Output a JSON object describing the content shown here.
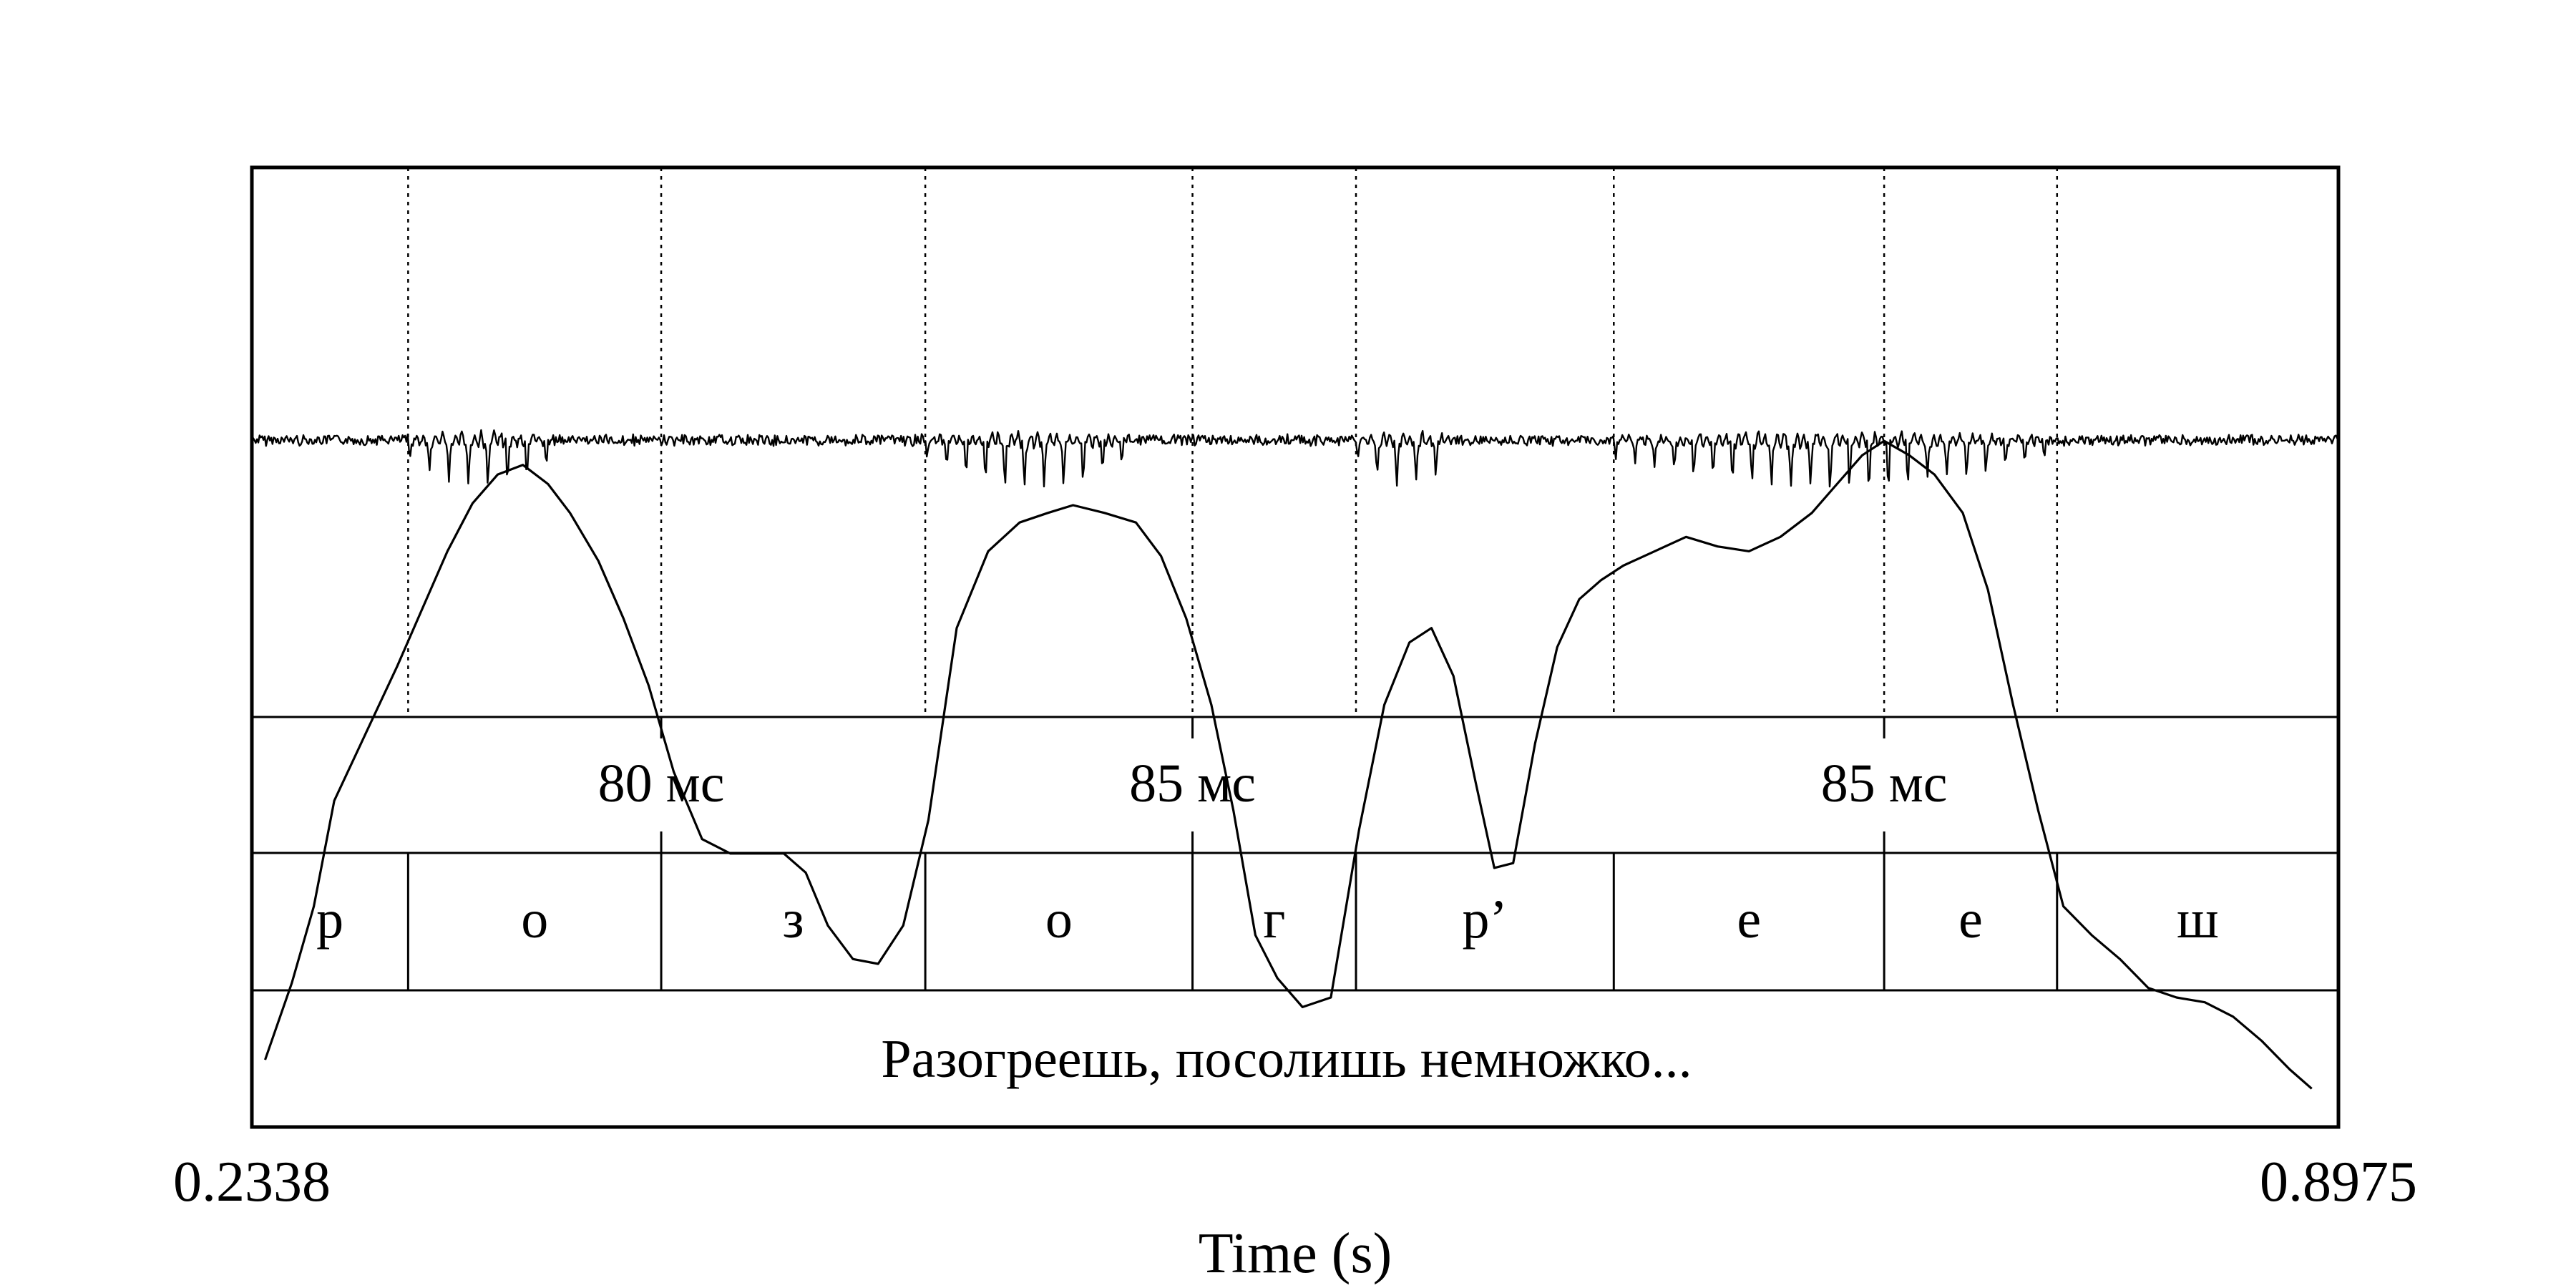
{
  "time_axis": {
    "start": "0.2338",
    "end": "0.8975",
    "label": "Time (s)",
    "start_s": 0.2338,
    "end_s": 0.8975
  },
  "tiers": {
    "durations": [
      "80 мс",
      "85 мс",
      "85 мс"
    ],
    "segments": [
      "р",
      "о",
      "з",
      "о",
      "г",
      "р’",
      "е",
      "е",
      "ш"
    ],
    "sentence": "Разогреешь, посолишь немножко..."
  },
  "boundaries_s": [
    0.2338,
    0.2835,
    0.364,
    0.448,
    0.533,
    0.585,
    0.667,
    0.753,
    0.808,
    0.8975
  ],
  "duration_marks_s": [
    0.364,
    0.533,
    0.753
  ],
  "pitch_contour": {
    "times_s": [
      0.238,
      0.2465,
      0.2535,
      0.26,
      0.27,
      0.28,
      0.288,
      0.296,
      0.304,
      0.312,
      0.32,
      0.328,
      0.335,
      0.344,
      0.352,
      0.36,
      0.368,
      0.377,
      0.386,
      0.395,
      0.403,
      0.41,
      0.417,
      0.425,
      0.433,
      0.441,
      0.449,
      0.458,
      0.468,
      0.478,
      0.487,
      0.495,
      0.505,
      0.515,
      0.523,
      0.531,
      0.539,
      0.546,
      0.553,
      0.56,
      0.568,
      0.577,
      0.586,
      0.594,
      0.602,
      0.609,
      0.616,
      0.623,
      0.629,
      0.635,
      0.642,
      0.649,
      0.656,
      0.663,
      0.67,
      0.68,
      0.69,
      0.7,
      0.71,
      0.72,
      0.73,
      0.738,
      0.746,
      0.753,
      0.761,
      0.769,
      0.778,
      0.786,
      0.794,
      0.802,
      0.81,
      0.819,
      0.828,
      0.837,
      0.846,
      0.855,
      0.864,
      0.873,
      0.882,
      0.889
    ],
    "values": [
      0.07,
      0.15,
      0.23,
      0.34,
      0.41,
      0.48,
      0.54,
      0.6,
      0.65,
      0.68,
      0.69,
      0.67,
      0.64,
      0.59,
      0.53,
      0.46,
      0.37,
      0.3,
      0.285,
      0.285,
      0.285,
      0.265,
      0.21,
      0.175,
      0.17,
      0.21,
      0.32,
      0.52,
      0.6,
      0.63,
      0.64,
      0.648,
      0.64,
      0.63,
      0.595,
      0.53,
      0.44,
      0.33,
      0.2,
      0.155,
      0.125,
      0.135,
      0.31,
      0.44,
      0.505,
      0.52,
      0.47,
      0.36,
      0.27,
      0.275,
      0.4,
      0.5,
      0.55,
      0.57,
      0.585,
      0.6,
      0.615,
      0.605,
      0.6,
      0.615,
      0.64,
      0.67,
      0.7,
      0.715,
      0.7,
      0.68,
      0.64,
      0.56,
      0.44,
      0.33,
      0.23,
      0.2,
      0.175,
      0.145,
      0.135,
      0.13,
      0.115,
      0.09,
      0.06,
      0.04
    ]
  },
  "waveform": {
    "voiced_intervals_s": [
      [
        0.2835,
        0.33
      ],
      [
        0.448,
        0.515
      ],
      [
        0.585,
        0.616
      ],
      [
        0.667,
        0.808
      ]
    ]
  }
}
